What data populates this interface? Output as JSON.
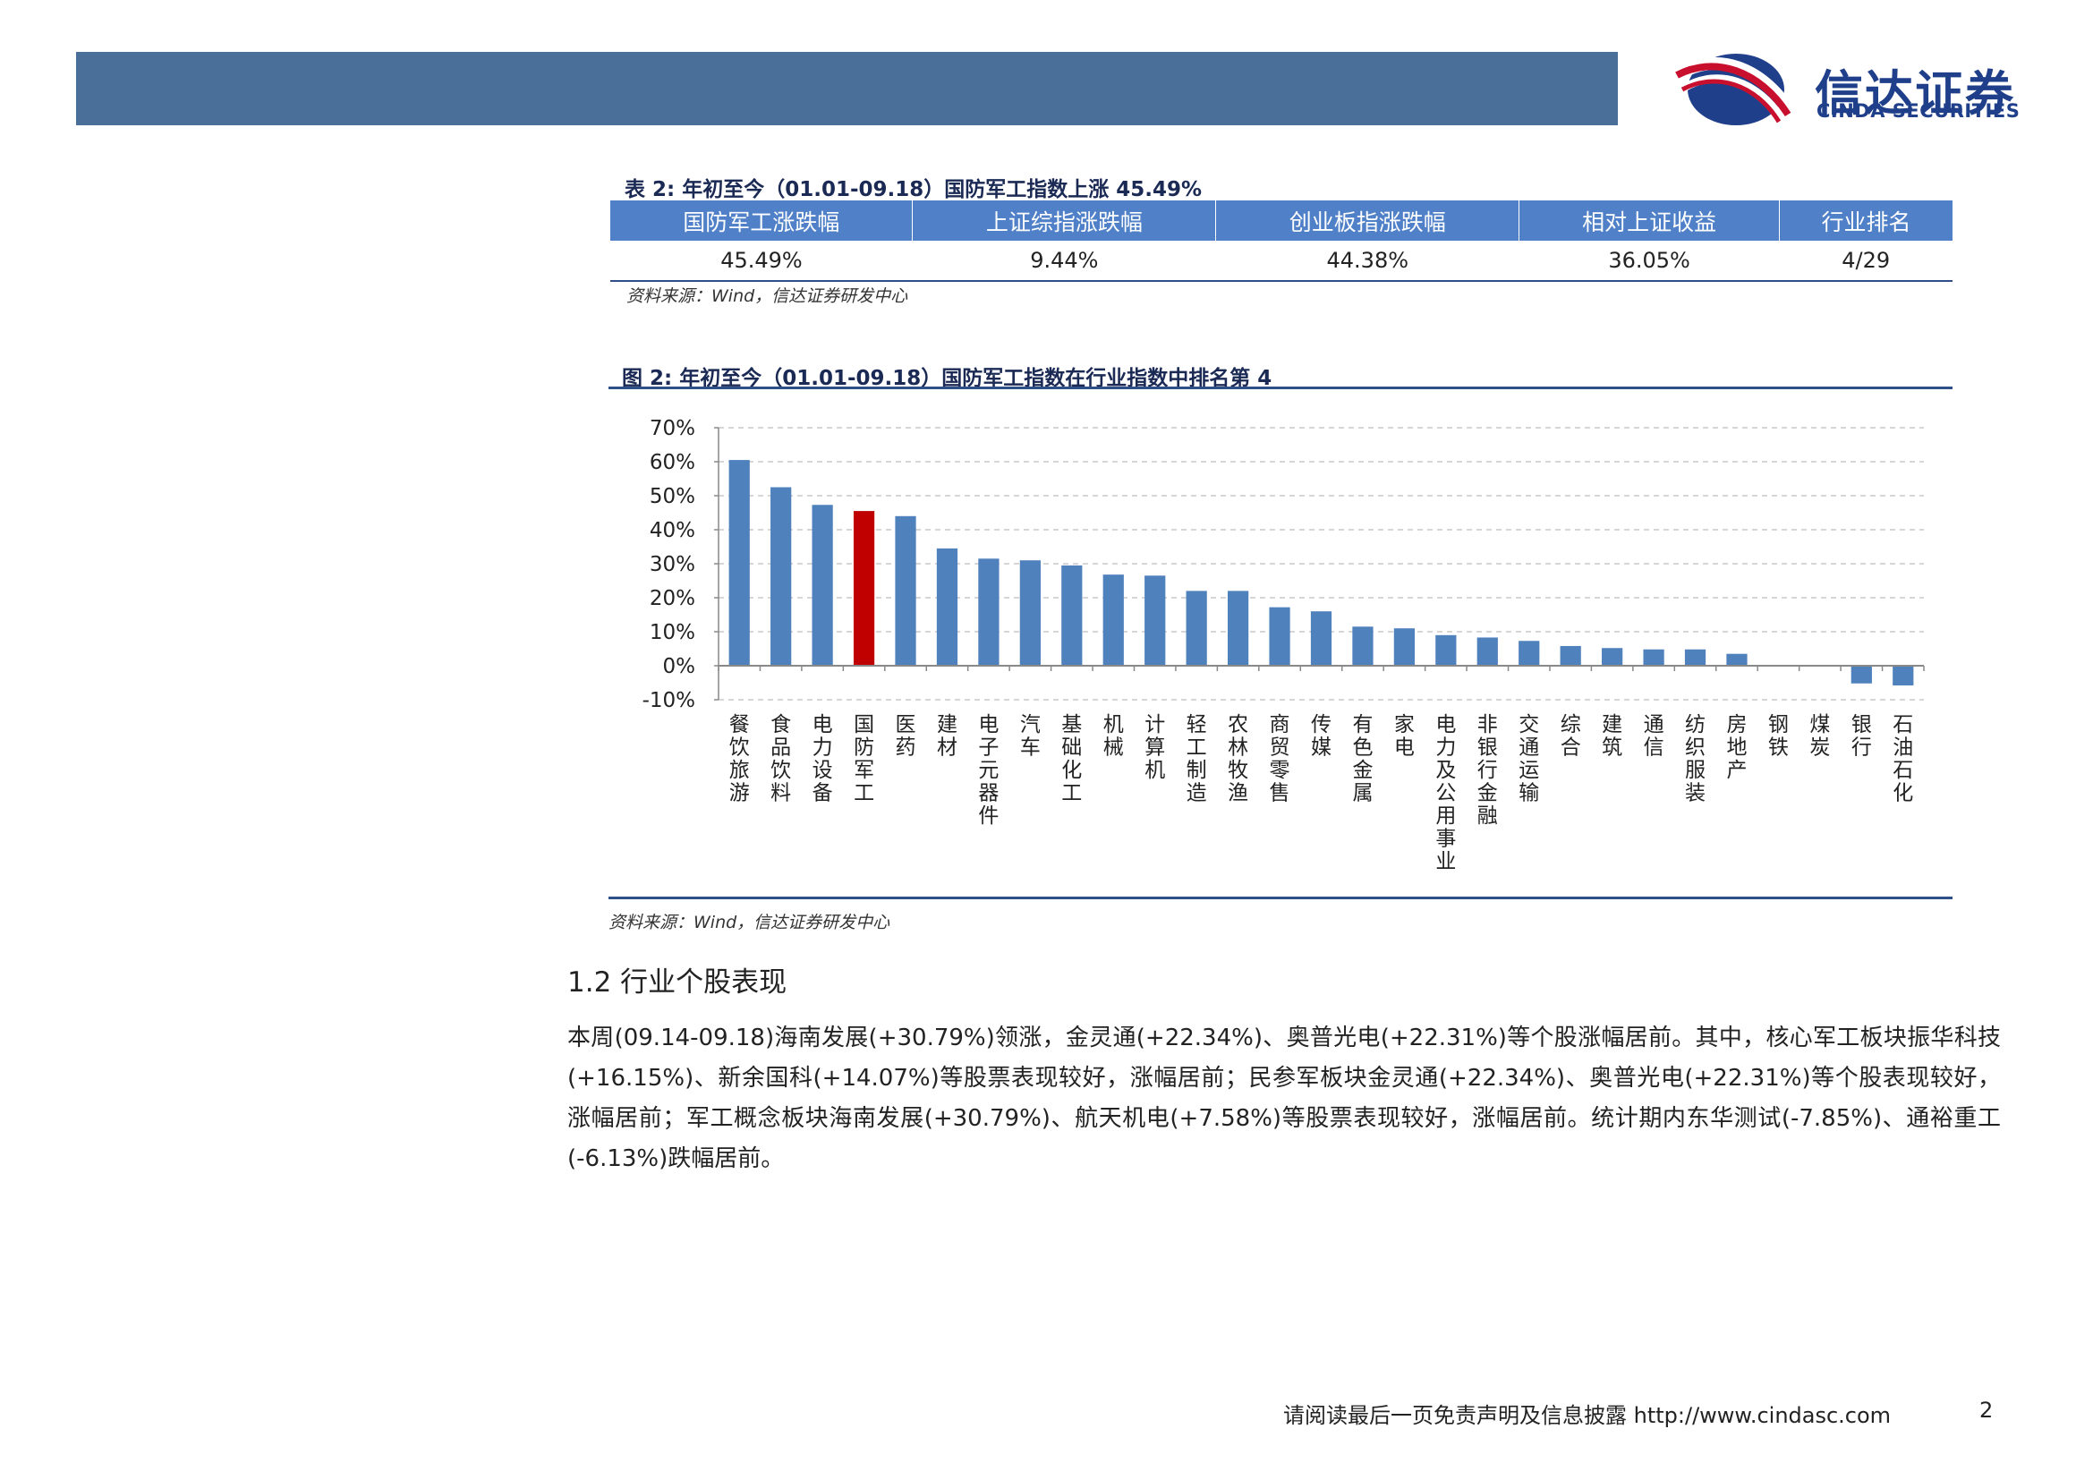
{
  "header": {
    "brand_cn": "信达证券",
    "brand_en": "CINDA SECURITIES",
    "logo_colors": {
      "red": "#c8102e",
      "blue": "#1f3f8a"
    }
  },
  "table2": {
    "caption": "表 2: 年初至今（01.01-09.18）国防军工指数上涨 45.49%",
    "headers": [
      "国防军工涨跌幅",
      "上证综指涨跌幅",
      "创业板指涨跌幅",
      "相对上证收益",
      "行业排名"
    ],
    "row": [
      "45.49%",
      "9.44%",
      "44.38%",
      "36.05%",
      "4/29"
    ],
    "source": "资料来源：Wind，信达证券研发中心"
  },
  "figure2": {
    "caption": "图 2: 年初至今（01.01-09.18）国防军工指数在行业指数中排名第 4",
    "source": "资料来源：Wind，信达证券研发中心"
  },
  "chart_data": {
    "type": "bar",
    "title": "",
    "xlabel": "",
    "ylabel": "",
    "categories": [
      "餐饮旅游",
      "食品饮料",
      "电力设备",
      "国防军工",
      "医药",
      "建材",
      "电子元器件",
      "汽车",
      "基础化工",
      "机械",
      "计算机",
      "轻工制造",
      "农林牧渔",
      "商贸零售",
      "传媒",
      "有色金属",
      "家电",
      "电力及公用事业",
      "非银行金融",
      "交通运输",
      "综合",
      "建筑",
      "通信",
      "纺织服装",
      "房地产",
      "钢铁",
      "煤炭",
      "银行",
      "石油石化"
    ],
    "values": [
      60.5,
      52.5,
      47.3,
      45.5,
      44.0,
      34.5,
      31.5,
      31.0,
      29.5,
      26.8,
      26.5,
      22.0,
      22.0,
      17.2,
      16.0,
      11.5,
      11.0,
      9.0,
      8.3,
      7.3,
      5.8,
      5.2,
      4.8,
      4.8,
      3.5,
      0.0,
      0.0,
      -5.2,
      -5.8
    ],
    "highlight_category": "国防军工",
    "bar_color": "#4f81bd",
    "highlight_color": "#c00000",
    "ylim": [
      -10,
      70
    ],
    "yticks": [
      "-10%",
      "0%",
      "10%",
      "20%",
      "30%",
      "40%",
      "50%",
      "60%",
      "70%"
    ],
    "grid": true
  },
  "section": {
    "title": "1.2 行业个股表现",
    "paragraph": "本周(09.14-09.18)海南发展(+30.79%)领涨，金灵通(+22.34%)、奥普光电(+22.31%)等个股涨幅居前。其中，核心军工板块振华科技(+16.15%)、新余国科(+14.07%)等股票表现较好，涨幅居前；民参军板块金灵通(+22.34%)、奥普光电(+22.31%)等个股表现较好，涨幅居前；军工概念板块海南发展(+30.79%)、航天机电(+7.58%)等股票表现较好，涨幅居前。统计期内东华测试(-7.85%)、通裕重工(-6.13%)跌幅居前。"
  },
  "footer": {
    "text": "请阅读最后一页免责声明及信息披露 http://www.cindasc.com",
    "page": "2"
  }
}
